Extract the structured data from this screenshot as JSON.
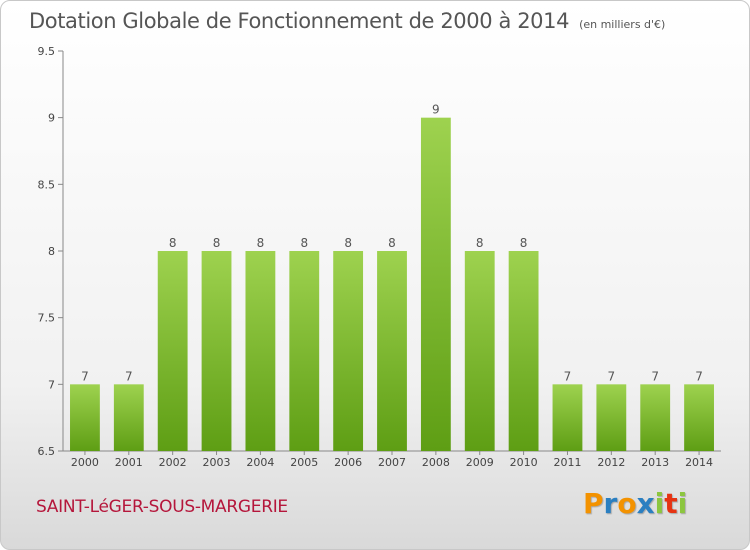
{
  "chart_data": {
    "type": "bar",
    "title": "Dotation Globale de Fonctionnement de 2000 à 2014",
    "subtitle": "(en milliers d'€)",
    "xlabel": "",
    "ylabel": "",
    "categories": [
      "2000",
      "2001",
      "2002",
      "2003",
      "2004",
      "2005",
      "2006",
      "2007",
      "2008",
      "2009",
      "2010",
      "2011",
      "2012",
      "2013",
      "2014"
    ],
    "values": [
      7,
      7,
      8,
      8,
      8,
      8,
      8,
      8,
      9,
      8,
      8,
      7,
      7,
      7,
      7
    ],
    "ylim": [
      6.5,
      9.5
    ],
    "yticks": [
      "6.5",
      "7",
      "7.5",
      "8",
      "8.5",
      "9",
      "9.5"
    ],
    "grid": false,
    "bar_color": "#7dc23a"
  },
  "footer": {
    "commune": "SAINT-LéGER-SOUS-MARGERIE",
    "logo_text": "Proxiti",
    "logo_letters": [
      "P",
      "r",
      "o",
      "x",
      "i",
      "t",
      "i"
    ],
    "logo_colors": [
      "#f39200",
      "#2a7fc1",
      "#f39200",
      "#2a7fc1",
      "#8cc63f",
      "#e63312",
      "#8cc63f"
    ]
  }
}
